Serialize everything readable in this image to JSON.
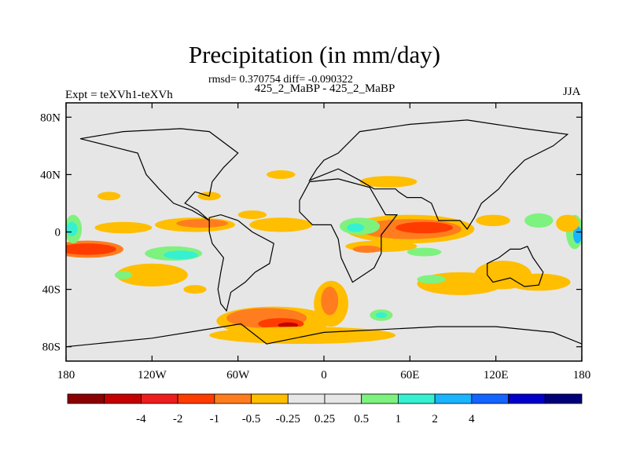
{
  "chart_data": {
    "type": "heatmap",
    "title": "Precipitation (in mm/day)",
    "stats_line": "rmsd= 0.370754 diff= -0.090322",
    "subtitle": "425_2_MaBP - 425_2_MaBP",
    "left_label": "Expt = teXVh1-teXVh",
    "right_label": "JJA",
    "x_ticks": [
      {
        "value": -180,
        "label": "180"
      },
      {
        "value": -120,
        "label": "120W"
      },
      {
        "value": -60,
        "label": "60W"
      },
      {
        "value": 0,
        "label": "0"
      },
      {
        "value": 60,
        "label": "60E"
      },
      {
        "value": 120,
        "label": "120E"
      },
      {
        "value": 180,
        "label": "180"
      }
    ],
    "y_ticks": [
      {
        "value": 80,
        "label": "80N"
      },
      {
        "value": 40,
        "label": "40N"
      },
      {
        "value": 0,
        "label": "0"
      },
      {
        "value": -40,
        "label": "40S"
      },
      {
        "value": -80,
        "label": "80S"
      }
    ],
    "xlim": [
      -180,
      180
    ],
    "ylim": [
      -90,
      90
    ],
    "colorbar": {
      "colors": [
        "#8b0000",
        "#c40000",
        "#ee1c1c",
        "#ff3c00",
        "#ff7d1e",
        "#ffbe00",
        "#e6e6e6",
        "#e6e6e6",
        "#7ef27e",
        "#36f0d2",
        "#1ab4ff",
        "#1464ff",
        "#0000c8",
        "#000078"
      ],
      "labels": [
        "-4",
        "-2",
        "-1",
        "-0.5",
        "-0.25",
        "0.25",
        "0.5",
        "1",
        "2",
        "4"
      ]
    },
    "blobs": [
      {
        "lon": -35,
        "lat": -62,
        "rx": 40,
        "ry": 10,
        "level": 5
      },
      {
        "lon": -40,
        "lat": -60,
        "rx": 28,
        "ry": 7,
        "level": 4
      },
      {
        "lon": -30,
        "lat": -64,
        "rx": 16,
        "ry": 4,
        "level": 3
      },
      {
        "lon": -25,
        "lat": -65,
        "rx": 7,
        "ry": 2,
        "level": 1
      },
      {
        "lon": -15,
        "lat": -72,
        "rx": 65,
        "ry": 6,
        "level": 5
      },
      {
        "lon": 5,
        "lat": -50,
        "rx": 12,
        "ry": 16,
        "level": 5
      },
      {
        "lon": 4,
        "lat": -48,
        "rx": 6,
        "ry": 10,
        "level": 4
      },
      {
        "lon": 60,
        "lat": 2,
        "rx": 45,
        "ry": 10,
        "level": 5
      },
      {
        "lon": 60,
        "lat": 2,
        "rx": 36,
        "ry": 7,
        "level": 4
      },
      {
        "lon": 70,
        "lat": 3,
        "rx": 20,
        "ry": 4,
        "level": 3
      },
      {
        "lon": 25,
        "lat": 4,
        "rx": 14,
        "ry": 6,
        "level": 8
      },
      {
        "lon": 22,
        "lat": 3,
        "rx": 6,
        "ry": 3,
        "level": 9
      },
      {
        "lon": 40,
        "lat": -10,
        "rx": 25,
        "ry": 4,
        "level": 5
      },
      {
        "lon": 30,
        "lat": -12,
        "rx": 10,
        "ry": 2.5,
        "level": 4
      },
      {
        "lon": 70,
        "lat": -14,
        "rx": 12,
        "ry": 3,
        "level": 8
      },
      {
        "lon": 95,
        "lat": -36,
        "rx": 30,
        "ry": 8,
        "level": 5
      },
      {
        "lon": 125,
        "lat": -30,
        "rx": 20,
        "ry": 10,
        "level": 5
      },
      {
        "lon": 150,
        "lat": -35,
        "rx": 22,
        "ry": 6,
        "level": 5
      },
      {
        "lon": -165,
        "lat": -12,
        "rx": 25,
        "ry": 6,
        "level": 4
      },
      {
        "lon": -165,
        "lat": -12,
        "rx": 20,
        "ry": 4,
        "level": 3
      },
      {
        "lon": -120,
        "lat": -30,
        "rx": 25,
        "ry": 8,
        "level": 5
      },
      {
        "lon": -105,
        "lat": -15,
        "rx": 20,
        "ry": 5,
        "level": 8
      },
      {
        "lon": -100,
        "lat": -16,
        "rx": 12,
        "ry": 3,
        "level": 9
      },
      {
        "lon": -140,
        "lat": 3,
        "rx": 20,
        "ry": 4,
        "level": 5
      },
      {
        "lon": -90,
        "lat": 5,
        "rx": 28,
        "ry": 5,
        "level": 5
      },
      {
        "lon": -85,
        "lat": 6,
        "rx": 18,
        "ry": 3,
        "level": 4
      },
      {
        "lon": -30,
        "lat": 5,
        "rx": 22,
        "ry": 5,
        "level": 5
      },
      {
        "lon": -50,
        "lat": 12,
        "rx": 10,
        "ry": 3,
        "level": 5
      },
      {
        "lon": -175,
        "lat": 2,
        "rx": 6,
        "ry": 10,
        "level": 8
      },
      {
        "lon": -176,
        "lat": 2,
        "rx": 4,
        "ry": 5,
        "level": 9
      },
      {
        "lon": 175,
        "lat": 0,
        "rx": 6,
        "ry": 12,
        "level": 8
      },
      {
        "lon": 177,
        "lat": -2,
        "rx": 3,
        "ry": 6,
        "level": 10
      },
      {
        "lon": 170,
        "lat": 6,
        "rx": 8,
        "ry": 6,
        "level": 5
      },
      {
        "lon": 150,
        "lat": 8,
        "rx": 10,
        "ry": 5,
        "level": 8
      },
      {
        "lon": 118,
        "lat": 8,
        "rx": 12,
        "ry": 4,
        "level": 5
      },
      {
        "lon": -90,
        "lat": -40,
        "rx": 8,
        "ry": 3,
        "level": 5
      },
      {
        "lon": -30,
        "lat": 40,
        "rx": 10,
        "ry": 3,
        "level": 5
      },
      {
        "lon": 45,
        "lat": 35,
        "rx": 20,
        "ry": 4,
        "level": 5
      },
      {
        "lon": -150,
        "lat": 25,
        "rx": 8,
        "ry": 3,
        "level": 5
      },
      {
        "lon": -80,
        "lat": 25,
        "rx": 8,
        "ry": 3,
        "level": 5
      },
      {
        "lon": -140,
        "lat": -30,
        "rx": 6,
        "ry": 3,
        "level": 8
      },
      {
        "lon": 40,
        "lat": -58,
        "rx": 8,
        "ry": 4,
        "level": 8
      },
      {
        "lon": 40,
        "lat": -58,
        "rx": 4,
        "ry": 2,
        "level": 9
      },
      {
        "lon": 75,
        "lat": -33,
        "rx": 10,
        "ry": 3,
        "level": 8
      }
    ]
  }
}
